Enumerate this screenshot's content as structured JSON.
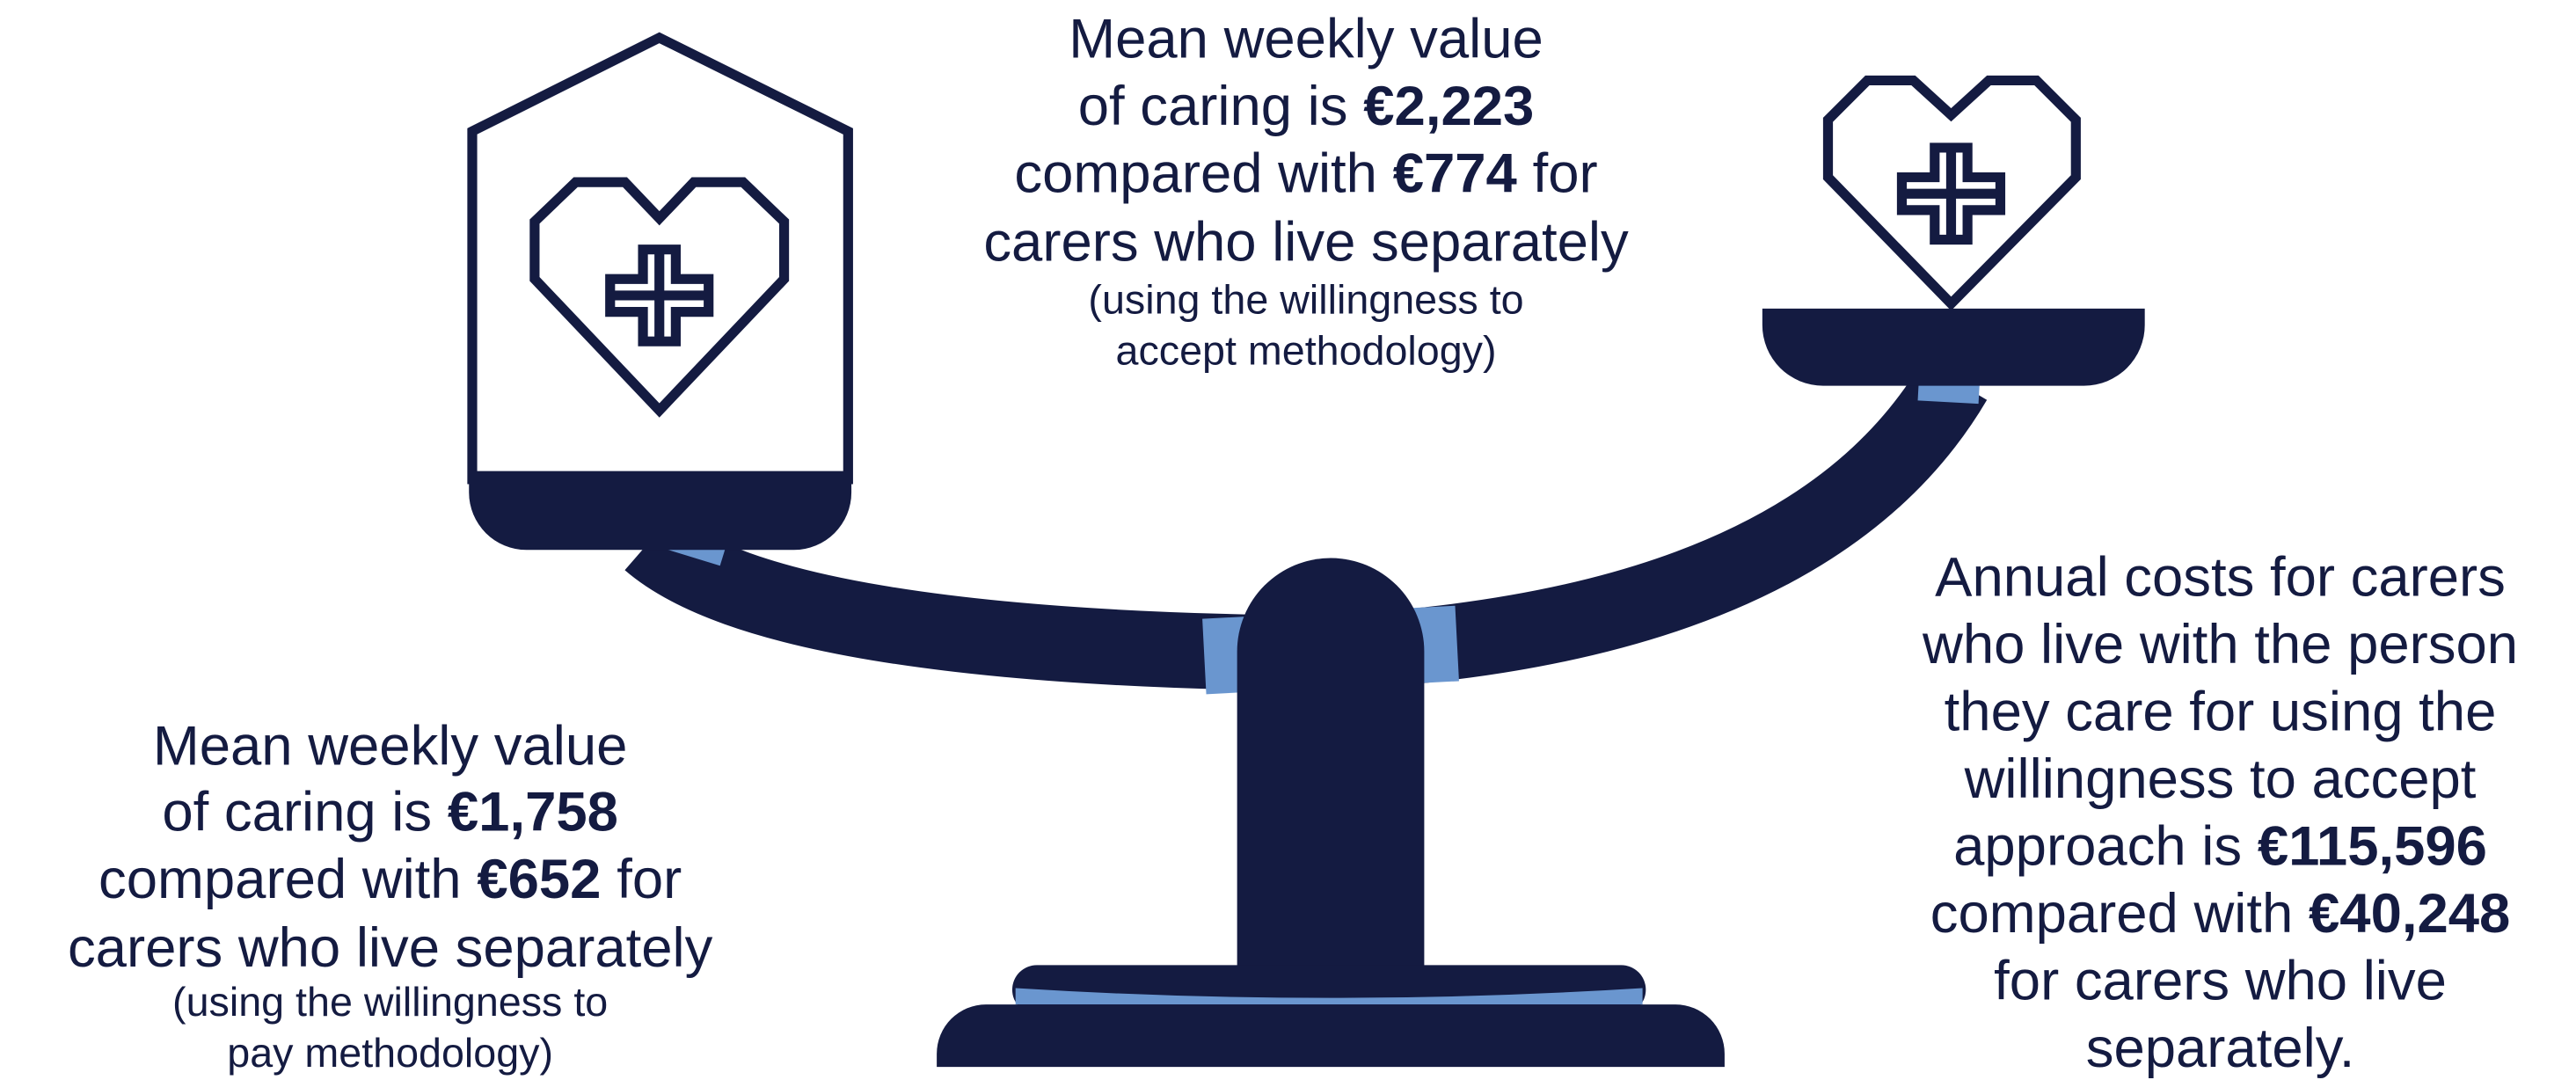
{
  "blocks": [
    {
      "lines": [
        [
          {
            "text": "Mean weekly value"
          }
        ],
        [
          {
            "text": "of caring is"
          },
          {
            "text": "€2,223",
            "bold": true
          }
        ],
        [
          {
            "text": "compared with"
          },
          {
            "text": "€774",
            "bold": true
          },
          {
            "text": "for"
          }
        ],
        [
          {
            "text": "carers who live separately"
          }
        ]
      ],
      "notes": [
        "(using the willingness to",
        "accept methodology)"
      ]
    },
    {
      "lines": [
        [
          {
            "text": "Mean weekly value"
          }
        ],
        [
          {
            "text": "of caring is"
          },
          {
            "text": "€1,758",
            "bold": true
          }
        ],
        [
          {
            "text": "compared with"
          },
          {
            "text": "€652",
            "bold": true
          },
          {
            "text": "for"
          }
        ],
        [
          {
            "text": "carers who live separately"
          }
        ]
      ],
      "notes": [
        "(using the willingness to",
        "pay methodology)"
      ]
    },
    {
      "lines": [
        [
          {
            "text": "Annual costs for carers"
          }
        ],
        [
          {
            "text": "who live with the person"
          }
        ],
        [
          {
            "text": "they care for using the"
          }
        ],
        [
          {
            "text": "willingness to accept"
          }
        ],
        [
          {
            "text": "approach is"
          },
          {
            "text": "€115,596",
            "bold": true
          }
        ],
        [
          {
            "text": "compared with"
          },
          {
            "text": "€40,248",
            "bold": true
          }
        ],
        [
          {
            "text": "for carers who live"
          }
        ],
        [
          {
            "text": "separately."
          }
        ]
      ],
      "notes": []
    }
  ]
}
